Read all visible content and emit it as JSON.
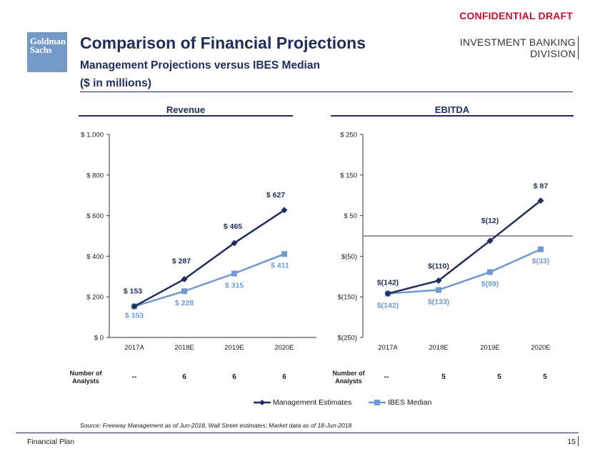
{
  "header": {
    "confidential": "CONFIDENTIAL DRAFT",
    "logo_line1": "Goldman",
    "logo_line2": "Sachs",
    "title": "Comparison of Financial Projections",
    "subtitle": "Management Projections versus IBES Median",
    "units": "($ in millions)",
    "division_line1": "INVESTMENT BANKING",
    "division_line2": "DIVISION"
  },
  "colors": {
    "management": "#1f2d5a",
    "ibes": "#6f9ad1",
    "text": "#1a1a1a"
  },
  "chart_data": [
    {
      "type": "line",
      "title": "Revenue",
      "categories": [
        "2017A",
        "2018E",
        "2019E",
        "2020E"
      ],
      "ylim": [
        0,
        1000
      ],
      "yticks": [
        0,
        200,
        400,
        600,
        800,
        1000
      ],
      "ytick_labels": [
        "$ 0",
        "$ 200",
        "$ 400",
        "$ 600",
        "$ 800",
        "$ 1,000"
      ],
      "series": [
        {
          "name": "Management Estimates",
          "values": [
            153,
            287,
            465,
            627
          ],
          "labels": [
            "$ 153",
            "$ 287",
            "$ 465",
            "$ 627"
          ]
        },
        {
          "name": "IBES Median",
          "values": [
            153,
            228,
            315,
            411
          ],
          "labels": [
            "$ 153",
            "$ 228",
            "$ 315",
            "$ 411"
          ]
        }
      ],
      "analysts_label": "Number of Analysts",
      "analysts": [
        "--",
        "6",
        "6",
        "6"
      ]
    },
    {
      "type": "line",
      "title": "EBITDA",
      "categories": [
        "2017A",
        "2018E",
        "2019E",
        "2020E"
      ],
      "ylim": [
        -250,
        250
      ],
      "yticks": [
        -250,
        -150,
        -50,
        50,
        150,
        250
      ],
      "ytick_labels": [
        "$(250)",
        "$(150)",
        "$(50)",
        "$ 50",
        "$ 150",
        "$ 250"
      ],
      "series": [
        {
          "name": "Management Estimates",
          "values": [
            -142,
            -110,
            -12,
            87
          ],
          "labels": [
            "$(142)",
            "$(110)",
            "$(12)",
            "$ 87"
          ]
        },
        {
          "name": "IBES Median",
          "values": [
            -142,
            -133,
            -89,
            -33
          ],
          "labels": [
            "$(142)",
            "$(133)",
            "$(89)",
            "$(33)"
          ]
        }
      ],
      "analysts_label": "Number of Analysts",
      "analysts": [
        "--",
        "5",
        "5",
        "5"
      ]
    }
  ],
  "legend": {
    "management": "Management Estimates",
    "ibes": "IBES Median"
  },
  "source": "Source: Freeway Management as of Jun-2018, Wall Street estimates; Market data as of 18-Jun-2018",
  "footer": {
    "left": "Financial Plan",
    "page": "15"
  }
}
